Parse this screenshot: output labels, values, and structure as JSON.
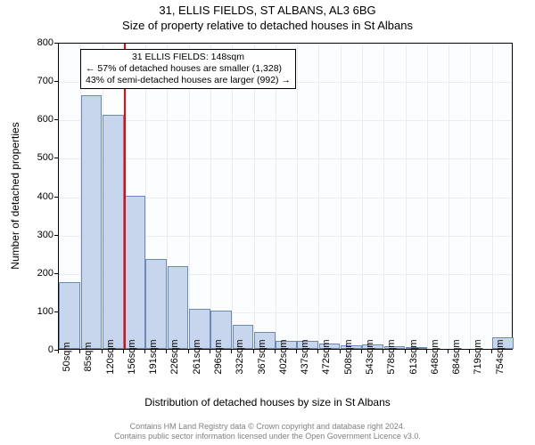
{
  "title1": "31, ELLIS FIELDS, ST ALBANS, AL3 6BG",
  "title2": "Size of property relative to detached houses in St Albans",
  "ylabel": "Number of detached properties",
  "xlabel": "Distribution of detached houses by size in St Albans",
  "footer1": "Contains HM Land Registry data © Crown copyright and database right 2024.",
  "footer2": "Contains public sector information licensed under the Open Government Licence v3.0.",
  "chart": {
    "type": "histogram",
    "background_color": "#fcfdfe",
    "bar_fill": "#c7d6ed",
    "bar_stroke": "#6a88b8",
    "grid_color": "#eaecef",
    "marker_color": "#ff0000",
    "ylim": [
      0,
      800
    ],
    "ytick_step": 100,
    "xticks": [
      "50sqm",
      "85sqm",
      "120sqm",
      "156sqm",
      "191sqm",
      "226sqm",
      "261sqm",
      "296sqm",
      "332sqm",
      "367sqm",
      "402sqm",
      "437sqm",
      "472sqm",
      "508sqm",
      "543sqm",
      "578sqm",
      "613sqm",
      "648sqm",
      "684sqm",
      "719sqm",
      "754sqm"
    ],
    "values": [
      175,
      660,
      610,
      400,
      235,
      215,
      105,
      100,
      62,
      45,
      22,
      22,
      15,
      10,
      12,
      7,
      3,
      0,
      0,
      0,
      30
    ],
    "marker_after_index": 2,
    "annotation": {
      "line1": "31 ELLIS FIELDS: 148sqm",
      "line2": "← 57% of detached houses are smaller (1,328)",
      "line3": "43% of semi-detached houses are larger (992) →"
    }
  }
}
